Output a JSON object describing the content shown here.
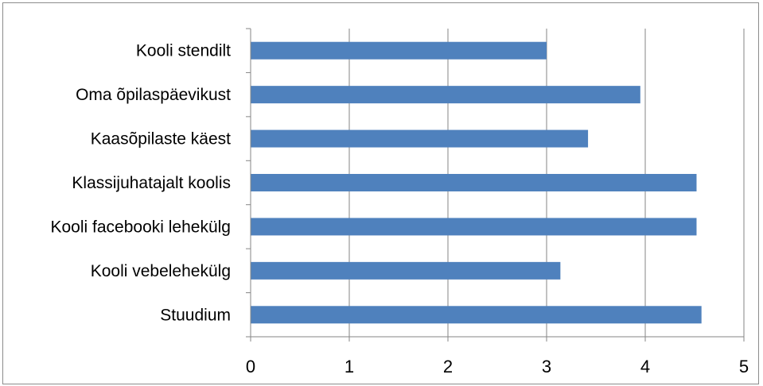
{
  "chart_data": {
    "type": "bar",
    "orientation": "horizontal",
    "categories": [
      "Kooli stendilt",
      "Oma õpilaspäevikust",
      "Kaasõpilaste käest",
      "Klassijuhatajalt koolis",
      "Kooli facebooki lehekülg",
      "Kooli vebelehekülg",
      "Stuudium"
    ],
    "values": [
      3.0,
      3.95,
      3.42,
      4.52,
      4.52,
      3.14,
      4.57
    ],
    "xlim": [
      0,
      5
    ],
    "xticks": [
      "0",
      "1",
      "2",
      "3",
      "4",
      "5"
    ],
    "grid": "vertical major gridlines",
    "legend": "none",
    "bar_color": "#4f81bd",
    "grid_color": "#868686",
    "axis_color": "#868686"
  }
}
